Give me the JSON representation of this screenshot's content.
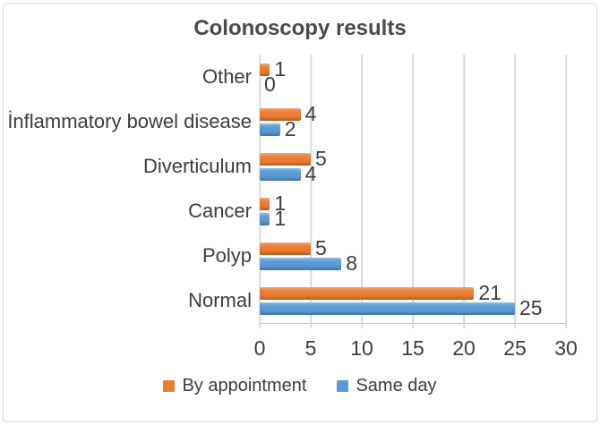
{
  "chart_data": {
    "type": "bar",
    "orientation": "horizontal",
    "title": "Colonoscopy results",
    "categories": [
      "Other",
      "İnflammatory bowel disease",
      "Diverticulum",
      "Cancer",
      "Polyp",
      "Normal"
    ],
    "series": [
      {
        "name": "By appointment",
        "color": "#ED7D31",
        "values": [
          1,
          4,
          5,
          1,
          5,
          21
        ]
      },
      {
        "name": "Same day",
        "color": "#5B9BD5",
        "values": [
          0,
          2,
          4,
          1,
          8,
          25
        ]
      }
    ],
    "xlim": [
      0,
      30
    ],
    "x_ticks": [
      "0",
      "5",
      "10",
      "15",
      "20",
      "25",
      "30"
    ],
    "grid": true,
    "value_labels": true,
    "legend_position": "bottom",
    "grid_color": "#D9D9D9",
    "axis_line_color": "#C6C6C6",
    "text_color": "#3D3D3D",
    "title_color": "#4A4A4A"
  }
}
